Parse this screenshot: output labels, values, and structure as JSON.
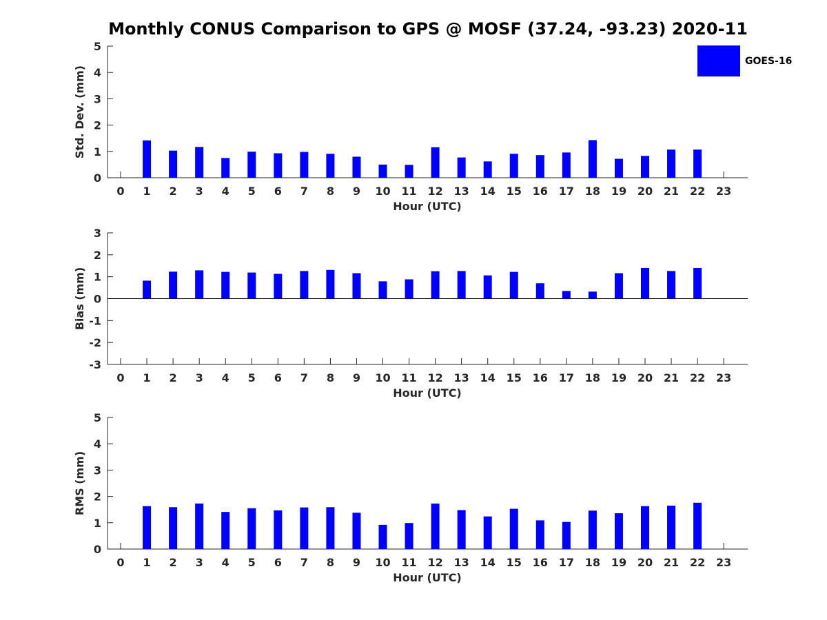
{
  "chart_data": {
    "title": "Monthly CONUS Comparison to GPS @ MOSF (37.24, -93.23) 2020-11",
    "legend": {
      "label": "GOES-16",
      "color": "#0000ff",
      "placement": "top-right"
    },
    "panels": [
      {
        "id": "std",
        "type": "bar",
        "ylabel": "Std. Dev. (mm)",
        "xlabel": "Hour (UTC)",
        "ylim": [
          0,
          5
        ],
        "yticks": [
          0,
          1,
          2,
          3,
          4,
          5
        ],
        "xticks": [
          0,
          1,
          2,
          3,
          4,
          5,
          6,
          7,
          8,
          9,
          10,
          11,
          12,
          13,
          14,
          15,
          16,
          17,
          18,
          19,
          20,
          21,
          22,
          23
        ],
        "series": [
          {
            "name": "GOES-16",
            "x": [
              1,
              2,
              3,
              4,
              5,
              6,
              7,
              8,
              9,
              10,
              11,
              12,
              13,
              14,
              15,
              16,
              17,
              18,
              19,
              20,
              21,
              22
            ],
            "values": [
              1.42,
              1.03,
              1.17,
              0.75,
              0.99,
              0.93,
              0.98,
              0.91,
              0.8,
              0.5,
              0.49,
              1.16,
              0.77,
              0.62,
              0.91,
              0.86,
              0.96,
              1.43,
              0.72,
              0.83,
              1.07,
              1.07
            ]
          }
        ]
      },
      {
        "id": "bias",
        "type": "bar",
        "ylabel": "Bias (mm)",
        "xlabel": "Hour (UTC)",
        "ylim": [
          -3,
          3
        ],
        "yticks": [
          -3,
          -2,
          -1,
          0,
          1,
          2,
          3
        ],
        "xticks": [
          0,
          1,
          2,
          3,
          4,
          5,
          6,
          7,
          8,
          9,
          10,
          11,
          12,
          13,
          14,
          15,
          16,
          17,
          18,
          19,
          20,
          21,
          22,
          23
        ],
        "zero_line": true,
        "series": [
          {
            "name": "GOES-16",
            "x": [
              1,
              2,
              3,
              4,
              5,
              6,
              7,
              8,
              9,
              10,
              11,
              12,
              13,
              14,
              15,
              16,
              17,
              18,
              19,
              20,
              21,
              22
            ],
            "values": [
              0.82,
              1.23,
              1.29,
              1.22,
              1.19,
              1.13,
              1.26,
              1.31,
              1.16,
              0.79,
              0.88,
              1.25,
              1.26,
              1.06,
              1.22,
              0.7,
              0.35,
              0.32,
              1.16,
              1.4,
              1.26,
              1.4
            ]
          }
        ]
      },
      {
        "id": "rms",
        "type": "bar",
        "ylabel": "RMS (mm)",
        "xlabel": "Hour (UTC)",
        "ylim": [
          0,
          5
        ],
        "yticks": [
          0,
          1,
          2,
          3,
          4,
          5
        ],
        "xticks": [
          0,
          1,
          2,
          3,
          4,
          5,
          6,
          7,
          8,
          9,
          10,
          11,
          12,
          13,
          14,
          15,
          16,
          17,
          18,
          19,
          20,
          21,
          22,
          23
        ],
        "series": [
          {
            "name": "GOES-16",
            "x": [
              1,
              2,
              3,
              4,
              5,
              6,
              7,
              8,
              9,
              10,
              11,
              12,
              13,
              14,
              15,
              16,
              17,
              18,
              19,
              20,
              21,
              22
            ],
            "values": [
              1.63,
              1.59,
              1.73,
              1.41,
              1.55,
              1.47,
              1.58,
              1.59,
              1.38,
              0.92,
              0.99,
              1.73,
              1.48,
              1.24,
              1.53,
              1.09,
              1.03,
              1.46,
              1.36,
              1.63,
              1.65,
              1.76
            ]
          }
        ]
      }
    ]
  }
}
